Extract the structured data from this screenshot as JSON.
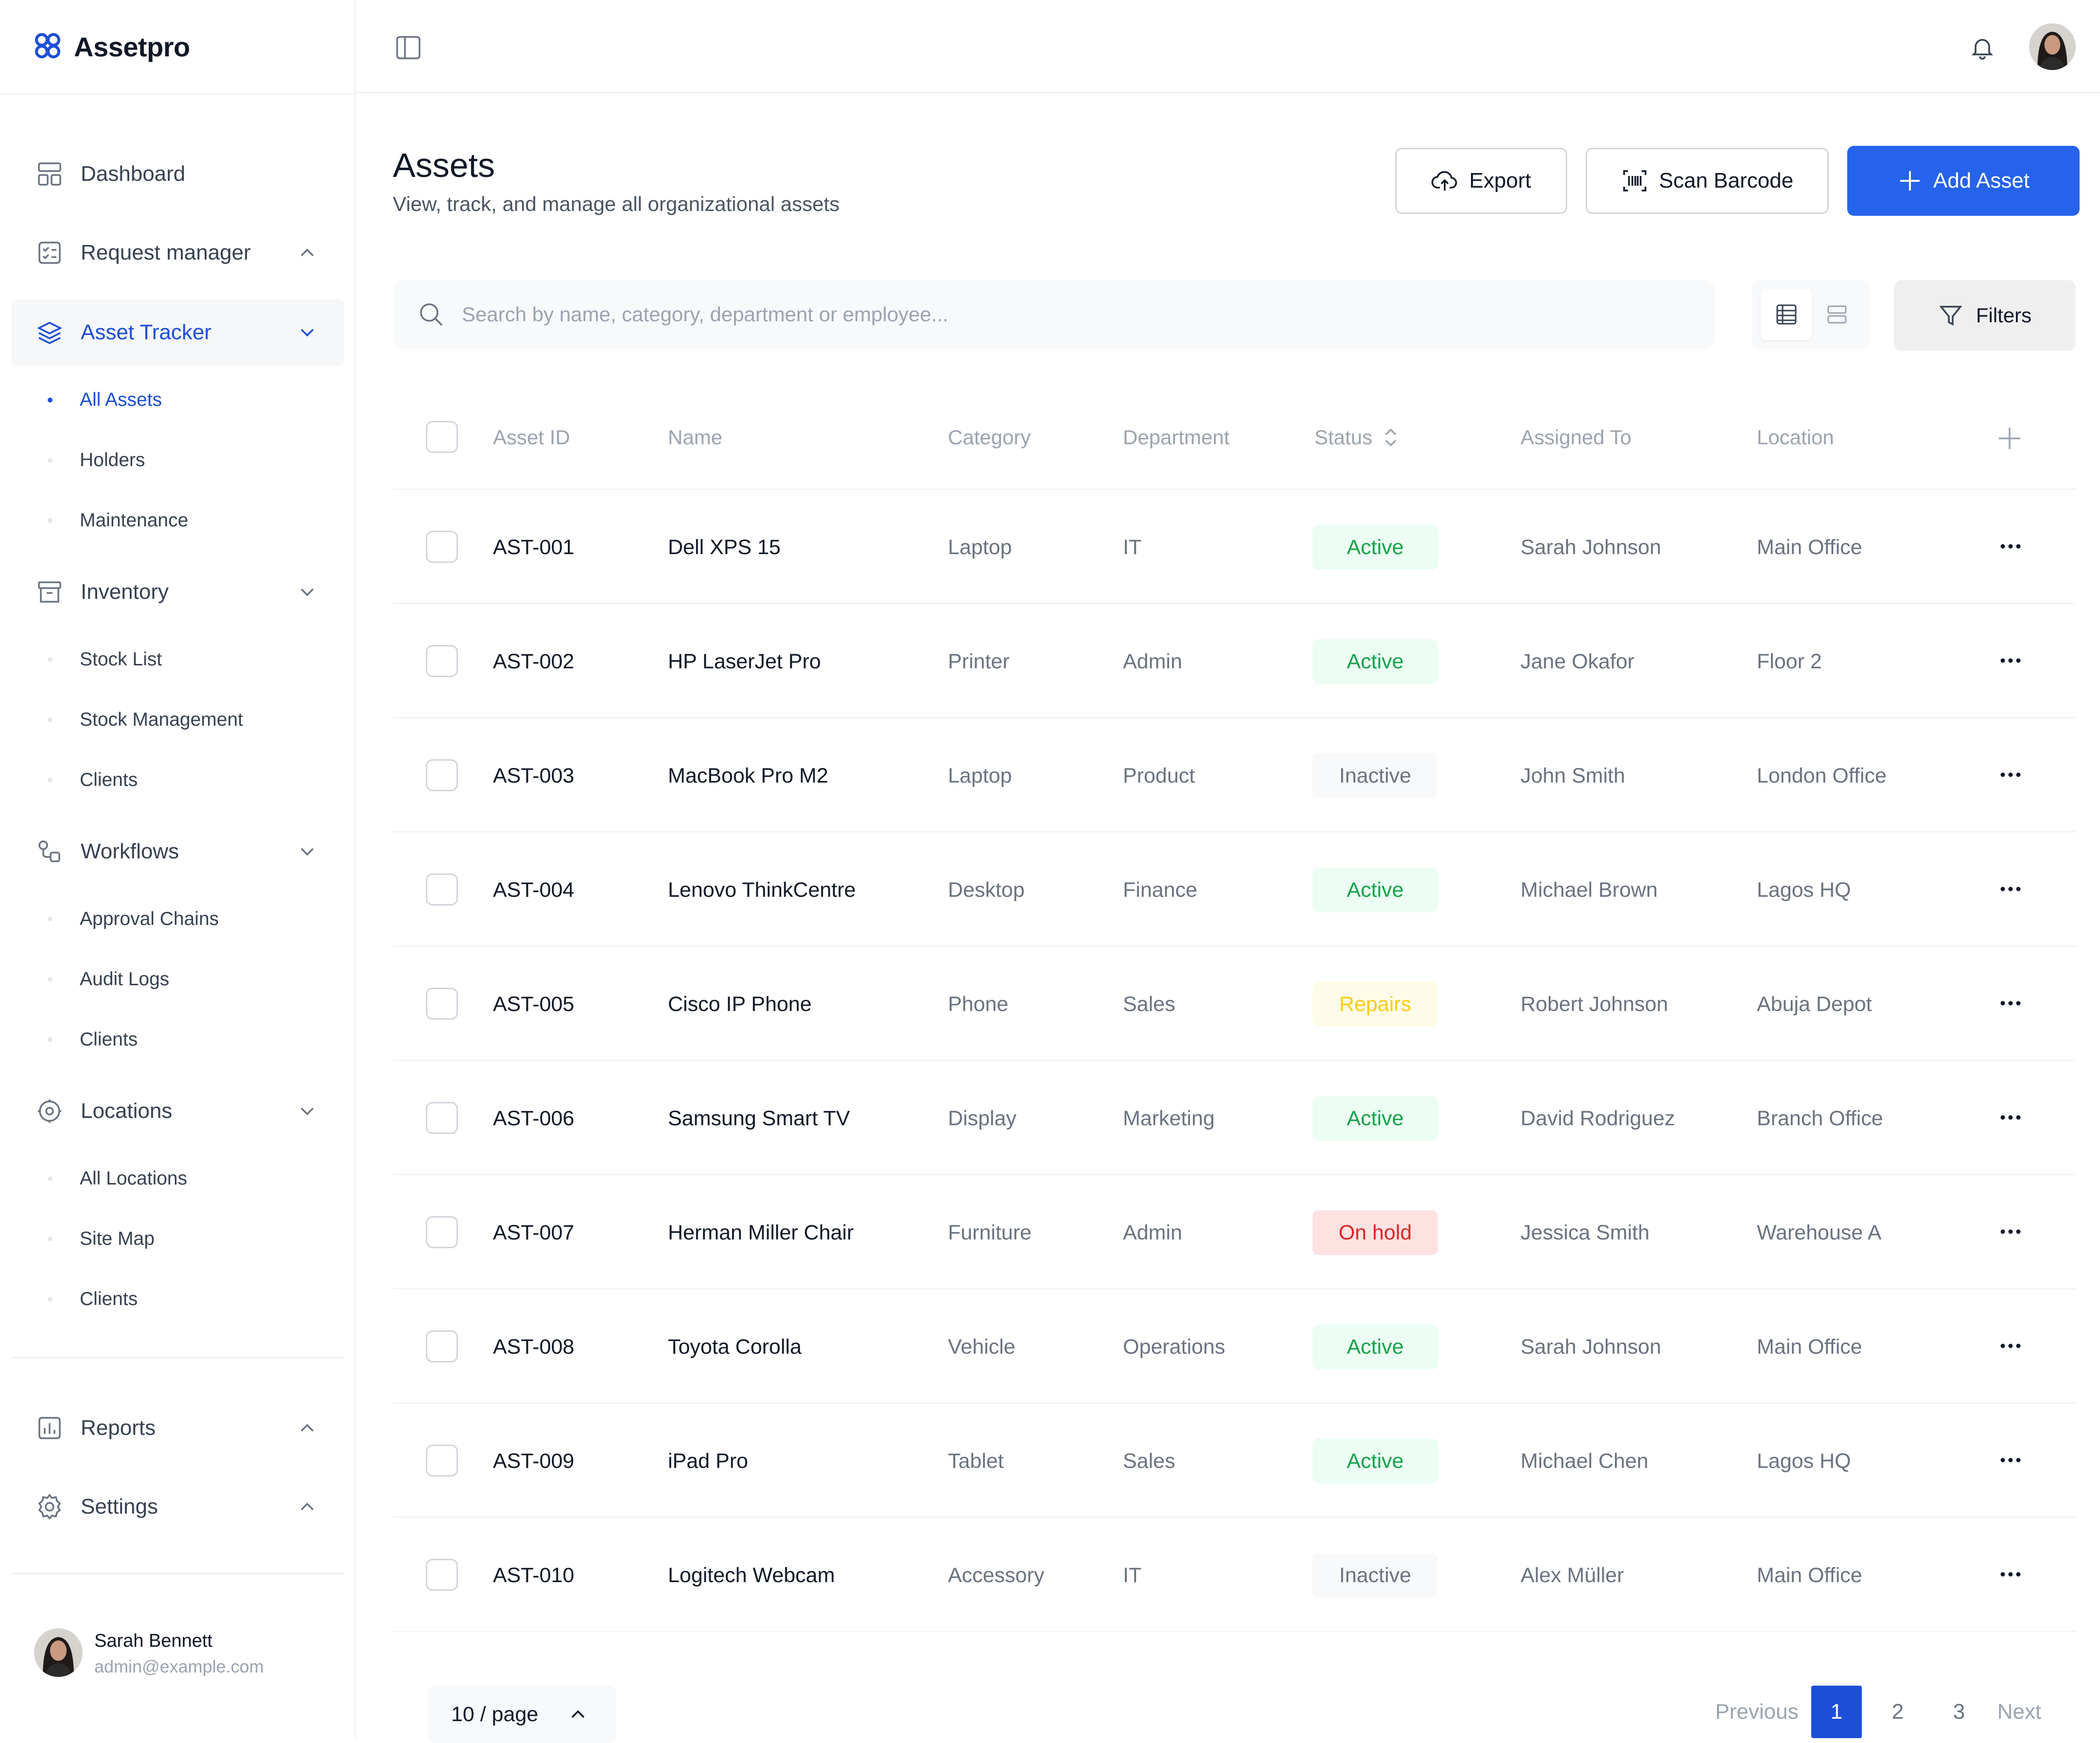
{
  "brand": {
    "name": "Assetpro"
  },
  "sidebar": {
    "items": [
      {
        "label": "Dashboard",
        "icon": "dashboard-icon"
      },
      {
        "label": "Request manager",
        "icon": "request-icon",
        "chevron": "up"
      },
      {
        "label": "Asset Tracker",
        "icon": "layers-icon",
        "chevron": "down",
        "active": true,
        "children": [
          "All Assets",
          "Holders",
          "Maintenance"
        ]
      },
      {
        "label": "Inventory",
        "icon": "archive-icon",
        "chevron": "down",
        "children": [
          "Stock List",
          "Stock Management",
          "Clients"
        ]
      },
      {
        "label": "Workflows",
        "icon": "workflow-icon",
        "chevron": "down",
        "children": [
          "Approval Chains",
          "Audit Logs",
          "Clients"
        ]
      },
      {
        "label": "Locations",
        "icon": "location-icon",
        "chevron": "down",
        "children": [
          "All Locations",
          "Site Map",
          "Clients"
        ]
      },
      {
        "label": "Reports",
        "icon": "reports-icon",
        "chevron": "up"
      },
      {
        "label": "Settings",
        "icon": "settings-icon",
        "chevron": "up"
      }
    ],
    "active_child": "All Assets"
  },
  "user": {
    "name": "Sarah Bennett",
    "email": "admin@example.com"
  },
  "header": {
    "title": "Assets",
    "subtitle": "View, track, and manage all organizational assets",
    "export_label": "Export",
    "scan_label": "Scan Barcode",
    "add_label": "Add Asset"
  },
  "search": {
    "placeholder": "Search by name, category, department or employee..."
  },
  "filters_label": "Filters",
  "table": {
    "columns": {
      "asset_id": "Asset ID",
      "name": "Name",
      "category": "Category",
      "department": "Department",
      "status": "Status",
      "assigned_to": "Assigned To",
      "location": "Location"
    },
    "rows": [
      {
        "id": "AST-001",
        "name": "Dell XPS 15",
        "category": "Laptop",
        "department": "IT",
        "status": "Active",
        "assigned": "Sarah Johnson",
        "location": "Main Office"
      },
      {
        "id": "AST-002",
        "name": "HP LaserJet Pro",
        "category": "Printer",
        "department": "Admin",
        "status": "Active",
        "assigned": "Jane Okafor",
        "location": "Floor 2"
      },
      {
        "id": "AST-003",
        "name": "MacBook Pro M2",
        "category": "Laptop",
        "department": "Product",
        "status": "Inactive",
        "assigned": "John Smith",
        "location": "London Office"
      },
      {
        "id": "AST-004",
        "name": "Lenovo ThinkCentre",
        "category": "Desktop",
        "department": "Finance",
        "status": "Active",
        "assigned": "Michael Brown",
        "location": "Lagos HQ"
      },
      {
        "id": "AST-005",
        "name": "Cisco IP Phone",
        "category": "Phone",
        "department": "Sales",
        "status": "Repairs",
        "assigned": "Robert Johnson",
        "location": "Abuja Depot"
      },
      {
        "id": "AST-006",
        "name": "Samsung Smart TV",
        "category": "Display",
        "department": "Marketing",
        "status": "Active",
        "assigned": "David Rodriguez",
        "location": "Branch Office"
      },
      {
        "id": "AST-007",
        "name": "Herman Miller Chair",
        "category": "Furniture",
        "department": "Admin",
        "status": "On hold",
        "assigned": "Jessica Smith",
        "location": "Warehouse A"
      },
      {
        "id": "AST-008",
        "name": "Toyota Corolla",
        "category": "Vehicle",
        "department": "Operations",
        "status": "Active",
        "assigned": "Sarah Johnson",
        "location": "Main Office"
      },
      {
        "id": "AST-009",
        "name": "iPad Pro",
        "category": "Tablet",
        "department": "Sales",
        "status": "Active",
        "assigned": "Michael Chen",
        "location": "Lagos HQ"
      },
      {
        "id": "AST-010",
        "name": "Logitech Webcam",
        "category": "Accessory",
        "department": "IT",
        "status": "Inactive",
        "assigned": "Alex Müller",
        "location": "Main Office"
      }
    ]
  },
  "status_colors": {
    "Active": {
      "bg": "#ecfdf3",
      "fg": "#16a34a"
    },
    "Inactive": {
      "bg": "#f8f9fb",
      "fg": "#6b7280"
    },
    "Repairs": {
      "bg": "#fefce8",
      "fg": "#facc15"
    },
    "On hold": {
      "bg": "#fee2e2",
      "fg": "#dc2626"
    }
  },
  "pagination": {
    "per_page": "10 / page",
    "previous": "Previous",
    "next": "Next",
    "pages": [
      "1",
      "2",
      "3"
    ],
    "current": "1"
  },
  "colors": {
    "accent": "#2563eb",
    "active_nav": "#1d4ed8"
  }
}
